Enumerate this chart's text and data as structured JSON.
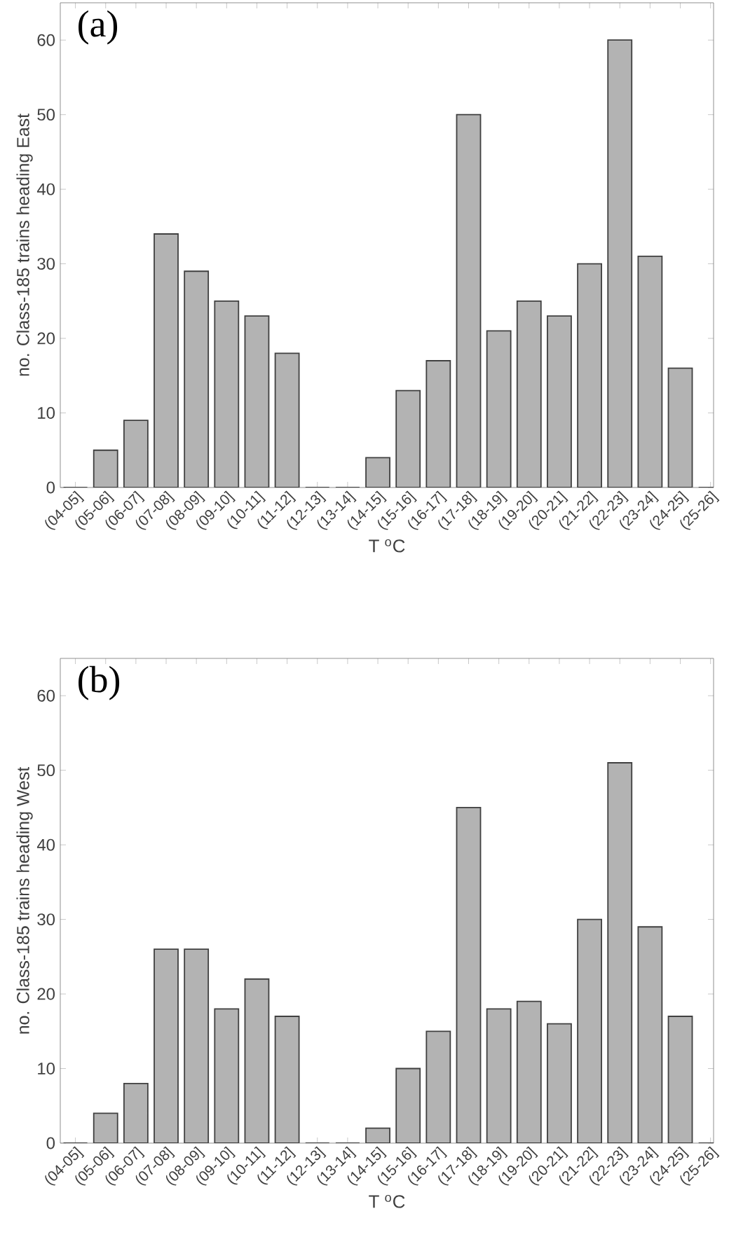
{
  "chart_data": [
    {
      "type": "bar",
      "categories": [
        "(04-05]",
        "(05-06]",
        "(06-07]",
        "(07-08]",
        "(08-09]",
        "(09-10]",
        "(10-11]",
        "(11-12]",
        "(12-13]",
        "(13-14]",
        "(14-15]",
        "(15-16]",
        "(16-17]",
        "(17-18]",
        "(18-19]",
        "(19-20]",
        "(20-21]",
        "(21-22]",
        "(22-23]",
        "(23-24]",
        "(24-25]",
        "(25-26]"
      ],
      "values": [
        0,
        5,
        9,
        34,
        29,
        25,
        23,
        18,
        0,
        0,
        4,
        13,
        17,
        50,
        21,
        25,
        23,
        30,
        60,
        31,
        16,
        0
      ],
      "color": "#b3b3b3",
      "ylim": [
        0,
        65
      ],
      "yticks": [
        0,
        10,
        20,
        30,
        40,
        50,
        60
      ],
      "xlabel": "T $^{o}$C",
      "ylabel": "no. Class-185 trains heading East",
      "annotations": [
        "(a)"
      ]
    },
    {
      "type": "bar",
      "categories": [
        "(04-05]",
        "(05-06]",
        "(06-07]",
        "(07-08]",
        "(08-09]",
        "(09-10]",
        "(10-11]",
        "(11-12]",
        "(12-13]",
        "(13-14]",
        "(14-15]",
        "(15-16]",
        "(16-17]",
        "(17-18]",
        "(18-19]",
        "(19-20]",
        "(20-21]",
        "(21-22]",
        "(22-23]",
        "(23-24]",
        "(24-25]",
        "(25-26]"
      ],
      "values": [
        0,
        4,
        8,
        26,
        26,
        18,
        22,
        17,
        0,
        0,
        2,
        10,
        15,
        45,
        18,
        19,
        16,
        30,
        51,
        29,
        17,
        0
      ],
      "color": "#b3b3b3",
      "ylim": [
        0,
        65
      ],
      "yticks": [
        0,
        10,
        20,
        30,
        40,
        50,
        60
      ],
      "xlabel": "T $^{o}$C",
      "ylabel": "no. Class-185 trains heading West",
      "annotations": [
        "(b)"
      ]
    }
  ]
}
